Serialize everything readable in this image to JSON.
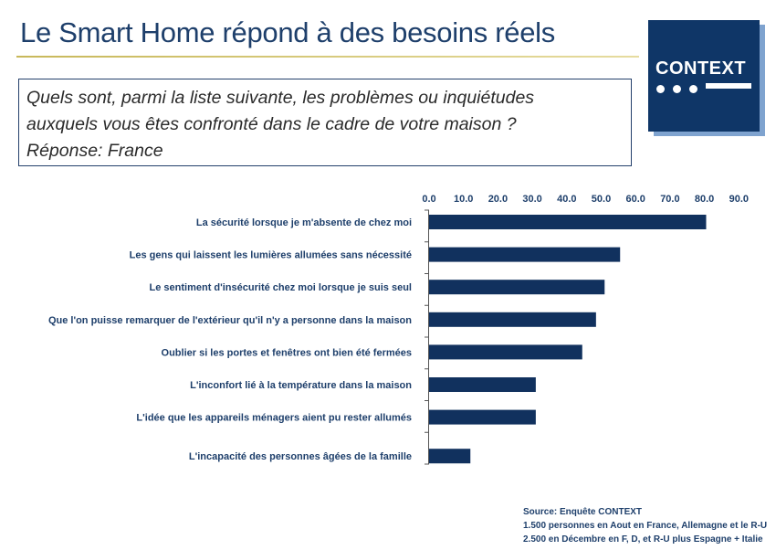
{
  "header": {
    "title": "Le Smart Home répond à des besoins réels"
  },
  "question": {
    "line1": "Quels sont, parmi la liste suivante, les problèmes ou inquiétudes",
    "line2": "auxquels vous êtes confronté dans le cadre de votre maison ?",
    "line3": "Réponse: France"
  },
  "logo": {
    "text": "CONTEXT"
  },
  "source": {
    "line1": "Source: Enquête CONTEXT",
    "line2": "1.500 personnes en Aout  en France, Allemagne et le R-U",
    "line3": "2.500 en Décembre en F, D, et R-U plus Espagne + Italie"
  },
  "colors": {
    "bar": "#11315e",
    "title": "#1e3f6b",
    "logo_bg": "#0f3667",
    "logo_shadow": "#7fa3cf",
    "rule": "#c8b85a"
  },
  "chart_data": {
    "type": "bar",
    "orientation": "horizontal",
    "title": "",
    "xlabel": "",
    "ylabel": "",
    "xlim": [
      0,
      90
    ],
    "ticks": [
      "0.0",
      "10.0",
      "20.0",
      "30.0",
      "40.0",
      "50.0",
      "60.0",
      "70.0",
      "80.0",
      "90.0"
    ],
    "tick_values": [
      0,
      10,
      20,
      30,
      40,
      50,
      60,
      70,
      80,
      90
    ],
    "axis_position": "top",
    "grid": false,
    "categories": [
      "La sécurité lorsque je m'absente de chez moi",
      "Les gens qui laissent les lumières allumées sans nécessité",
      "Le sentiment d'insécurité chez moi lorsque je suis seul",
      "Que l'on puisse remarquer de l'extérieur qu'il n'y a personne dans la maison",
      "Oublier si les portes et fenêtres ont bien été fermées",
      "L'inconfort lié à la température dans la maison",
      "L'idée que les appareils ménagers aient pu rester allumés",
      "L'incapacité des personnes âgées de la famille"
    ],
    "values": [
      80.5,
      55.5,
      51.0,
      48.5,
      44.5,
      31.0,
      31.0,
      12.0
    ]
  }
}
